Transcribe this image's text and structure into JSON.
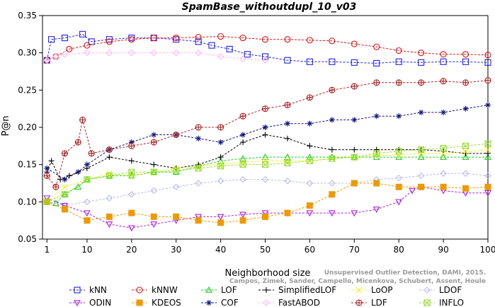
{
  "chart_data": {
    "type": "line",
    "title": "SpamBase_withoutdupl_10_v03",
    "xlabel": "Neighborhood size",
    "ylabel": "P@n",
    "xlim": [
      0,
      100
    ],
    "ylim": [
      0.05,
      0.35
    ],
    "xticks": [
      1,
      10,
      20,
      30,
      40,
      50,
      60,
      70,
      80,
      90,
      100
    ],
    "yticks": [
      0.05,
      0.1,
      0.15,
      0.2,
      0.25,
      0.3,
      0.35
    ],
    "grid": false,
    "legend_position": "bottom",
    "watermark": "Unsupervised Outlier Detection, DAMI, 2015. Campos, Zimek, Sander, Campello, Micenkova, Schubert, Assent, Houle",
    "series": [
      {
        "name": "kNN",
        "color": "#2020ee",
        "marker": "square",
        "dashed": true,
        "points": [
          [
            1,
            0.29
          ],
          [
            2,
            0.318
          ],
          [
            5,
            0.32
          ],
          [
            9,
            0.325
          ],
          [
            11,
            0.315
          ],
          [
            15,
            0.318
          ],
          [
            20,
            0.32
          ],
          [
            25,
            0.32
          ],
          [
            30,
            0.318
          ],
          [
            35,
            0.315
          ],
          [
            38,
            0.31
          ],
          [
            42,
            0.305
          ],
          [
            46,
            0.298
          ],
          [
            50,
            0.295
          ],
          [
            55,
            0.29
          ],
          [
            60,
            0.288
          ],
          [
            65,
            0.288
          ],
          [
            70,
            0.287
          ],
          [
            75,
            0.286
          ],
          [
            80,
            0.288
          ],
          [
            85,
            0.287
          ],
          [
            90,
            0.288
          ],
          [
            95,
            0.288
          ],
          [
            100,
            0.287
          ]
        ]
      },
      {
        "name": "kNNW",
        "color": "#dd1111",
        "marker": "circle",
        "dashed": true,
        "points": [
          [
            1,
            0.29
          ],
          [
            3,
            0.295
          ],
          [
            6,
            0.305
          ],
          [
            10,
            0.31
          ],
          [
            15,
            0.315
          ],
          [
            20,
            0.318
          ],
          [
            25,
            0.32
          ],
          [
            30,
            0.32
          ],
          [
            35,
            0.321
          ],
          [
            40,
            0.322
          ],
          [
            45,
            0.32
          ],
          [
            50,
            0.318
          ],
          [
            55,
            0.318
          ],
          [
            60,
            0.317
          ],
          [
            65,
            0.316
          ],
          [
            70,
            0.312
          ],
          [
            75,
            0.308
          ],
          [
            80,
            0.303
          ],
          [
            85,
            0.3
          ],
          [
            90,
            0.298
          ],
          [
            95,
            0.298
          ],
          [
            100,
            0.297
          ]
        ]
      },
      {
        "name": "LOF",
        "color": "#22cc22",
        "marker": "triangle",
        "dashed": true,
        "points": [
          [
            1,
            0.1
          ],
          [
            3,
            0.098
          ],
          [
            5,
            0.11
          ],
          [
            8,
            0.12
          ],
          [
            10,
            0.13
          ],
          [
            15,
            0.135
          ],
          [
            20,
            0.135
          ],
          [
            25,
            0.14
          ],
          [
            30,
            0.14
          ],
          [
            35,
            0.148
          ],
          [
            40,
            0.155
          ],
          [
            45,
            0.158
          ],
          [
            50,
            0.16
          ],
          [
            55,
            0.16
          ],
          [
            60,
            0.16
          ],
          [
            65,
            0.16
          ],
          [
            70,
            0.16
          ],
          [
            75,
            0.16
          ],
          [
            80,
            0.16
          ],
          [
            85,
            0.16
          ],
          [
            90,
            0.16
          ],
          [
            95,
            0.16
          ],
          [
            100,
            0.16
          ]
        ]
      },
      {
        "name": "SimplifiedLOF",
        "color": "#000000",
        "marker": "plus",
        "dashed": true,
        "points": [
          [
            1,
            0.14
          ],
          [
            2,
            0.155
          ],
          [
            4,
            0.13
          ],
          [
            6,
            0.135
          ],
          [
            10,
            0.145
          ],
          [
            15,
            0.16
          ],
          [
            20,
            0.155
          ],
          [
            25,
            0.15
          ],
          [
            30,
            0.145
          ],
          [
            35,
            0.15
          ],
          [
            40,
            0.16
          ],
          [
            45,
            0.18
          ],
          [
            50,
            0.19
          ],
          [
            55,
            0.185
          ],
          [
            60,
            0.175
          ],
          [
            65,
            0.17
          ],
          [
            70,
            0.17
          ],
          [
            75,
            0.17
          ],
          [
            80,
            0.17
          ],
          [
            85,
            0.17
          ],
          [
            90,
            0.168
          ],
          [
            95,
            0.165
          ],
          [
            100,
            0.165
          ]
        ]
      },
      {
        "name": "LoOP",
        "color": "#eeee22",
        "marker": "x",
        "dashed": true,
        "points": [
          [
            1,
            0.1
          ],
          [
            5,
            0.12
          ],
          [
            10,
            0.13
          ],
          [
            15,
            0.138
          ],
          [
            20,
            0.135
          ],
          [
            25,
            0.14
          ],
          [
            30,
            0.145
          ],
          [
            35,
            0.148
          ],
          [
            40,
            0.15
          ],
          [
            45,
            0.153
          ],
          [
            50,
            0.155
          ],
          [
            55,
            0.155
          ],
          [
            60,
            0.155
          ],
          [
            65,
            0.158
          ],
          [
            70,
            0.16
          ],
          [
            75,
            0.162
          ],
          [
            80,
            0.163
          ],
          [
            85,
            0.165
          ],
          [
            90,
            0.165
          ],
          [
            95,
            0.167
          ],
          [
            100,
            0.17
          ]
        ]
      },
      {
        "name": "LDOF",
        "color": "#bbbbee",
        "marker": "diamond",
        "dashed": true,
        "points": [
          [
            1,
            0.1
          ],
          [
            5,
            0.095
          ],
          [
            10,
            0.1
          ],
          [
            15,
            0.105
          ],
          [
            20,
            0.11
          ],
          [
            25,
            0.115
          ],
          [
            30,
            0.12
          ],
          [
            35,
            0.125
          ],
          [
            40,
            0.128
          ],
          [
            45,
            0.13
          ],
          [
            50,
            0.13
          ],
          [
            55,
            0.128
          ],
          [
            60,
            0.125
          ],
          [
            65,
            0.125
          ],
          [
            70,
            0.125
          ],
          [
            75,
            0.13
          ],
          [
            80,
            0.132
          ],
          [
            85,
            0.135
          ],
          [
            90,
            0.138
          ],
          [
            95,
            0.138
          ],
          [
            100,
            0.135
          ]
        ]
      },
      {
        "name": "ODIN",
        "color": "#aa22dd",
        "marker": "triangle-down",
        "dashed": true,
        "points": [
          [
            1,
            0.105
          ],
          [
            5,
            0.095
          ],
          [
            10,
            0.085
          ],
          [
            15,
            0.07
          ],
          [
            20,
            0.065
          ],
          [
            25,
            0.07
          ],
          [
            30,
            0.075
          ],
          [
            35,
            0.08
          ],
          [
            40,
            0.08
          ],
          [
            45,
            0.083
          ],
          [
            50,
            0.085
          ],
          [
            55,
            0.085
          ],
          [
            60,
            0.085
          ],
          [
            65,
            0.085
          ],
          [
            70,
            0.085
          ],
          [
            75,
            0.09
          ],
          [
            80,
            0.1
          ],
          [
            83,
            0.115
          ],
          [
            85,
            0.12
          ],
          [
            90,
            0.115
          ],
          [
            95,
            0.112
          ],
          [
            100,
            0.112
          ]
        ]
      },
      {
        "name": "KDEOS",
        "color": "#ee9900",
        "marker": "square-filled",
        "dashed": true,
        "points": [
          [
            1,
            0.1
          ],
          [
            5,
            0.09
          ],
          [
            10,
            0.075
          ],
          [
            15,
            0.08
          ],
          [
            20,
            0.085
          ],
          [
            25,
            0.08
          ],
          [
            30,
            0.08
          ],
          [
            35,
            0.075
          ],
          [
            40,
            0.072
          ],
          [
            45,
            0.075
          ],
          [
            50,
            0.08
          ],
          [
            55,
            0.085
          ],
          [
            60,
            0.095
          ],
          [
            65,
            0.11
          ],
          [
            70,
            0.125
          ],
          [
            75,
            0.125
          ],
          [
            80,
            0.12
          ],
          [
            85,
            0.12
          ],
          [
            90,
            0.12
          ],
          [
            95,
            0.118
          ],
          [
            100,
            0.12
          ]
        ]
      },
      {
        "name": "COF",
        "color": "#101080",
        "marker": "asterisk",
        "dashed": true,
        "points": [
          [
            1,
            0.145
          ],
          [
            5,
            0.13
          ],
          [
            8,
            0.14
          ],
          [
            10,
            0.15
          ],
          [
            15,
            0.17
          ],
          [
            20,
            0.18
          ],
          [
            25,
            0.19
          ],
          [
            30,
            0.19
          ],
          [
            35,
            0.185
          ],
          [
            40,
            0.18
          ],
          [
            45,
            0.19
          ],
          [
            50,
            0.2
          ],
          [
            55,
            0.205
          ],
          [
            60,
            0.205
          ],
          [
            65,
            0.21
          ],
          [
            70,
            0.21
          ],
          [
            75,
            0.215
          ],
          [
            80,
            0.215
          ],
          [
            85,
            0.22
          ],
          [
            90,
            0.22
          ],
          [
            95,
            0.225
          ],
          [
            100,
            0.23
          ]
        ]
      },
      {
        "name": "FastABOD",
        "color": "#ffbbee",
        "marker": "diamond",
        "dashed": true,
        "points": [
          [
            1,
            0.29
          ],
          [
            3,
            0.295
          ],
          [
            5,
            0.298
          ],
          [
            10,
            0.3
          ],
          [
            15,
            0.3
          ],
          [
            20,
            0.3
          ],
          [
            25,
            0.3
          ],
          [
            30,
            0.3
          ],
          [
            35,
            0.3
          ],
          [
            40,
            0.295
          ],
          [
            45,
            0.292
          ],
          [
            50,
            0.29
          ]
        ]
      },
      {
        "name": "LDF",
        "color": "#aa2222",
        "marker": "circle-plus",
        "dashed": true,
        "points": [
          [
            1,
            0.135
          ],
          [
            3,
            0.12
          ],
          [
            5,
            0.165
          ],
          [
            8,
            0.18
          ],
          [
            9,
            0.21
          ],
          [
            11,
            0.165
          ],
          [
            15,
            0.17
          ],
          [
            20,
            0.175
          ],
          [
            25,
            0.18
          ],
          [
            30,
            0.19
          ],
          [
            35,
            0.2
          ],
          [
            40,
            0.2
          ],
          [
            45,
            0.215
          ],
          [
            50,
            0.225
          ],
          [
            55,
            0.23
          ],
          [
            60,
            0.24
          ],
          [
            65,
            0.25
          ],
          [
            70,
            0.255
          ],
          [
            75,
            0.26
          ],
          [
            80,
            0.26
          ],
          [
            85,
            0.26
          ],
          [
            90,
            0.262
          ],
          [
            95,
            0.26
          ],
          [
            100,
            0.263
          ]
        ]
      },
      {
        "name": "INFLO",
        "color": "#99dd33",
        "marker": "square-cross",
        "dashed": true,
        "points": [
          [
            1,
            0.1
          ],
          [
            5,
            0.11
          ],
          [
            10,
            0.13
          ],
          [
            15,
            0.135
          ],
          [
            20,
            0.14
          ],
          [
            25,
            0.14
          ],
          [
            30,
            0.142
          ],
          [
            35,
            0.145
          ],
          [
            40,
            0.148
          ],
          [
            45,
            0.15
          ],
          [
            50,
            0.15
          ],
          [
            55,
            0.152
          ],
          [
            60,
            0.155
          ],
          [
            65,
            0.158
          ],
          [
            70,
            0.16
          ],
          [
            75,
            0.165
          ],
          [
            80,
            0.168
          ],
          [
            85,
            0.17
          ],
          [
            90,
            0.172
          ],
          [
            95,
            0.175
          ],
          [
            100,
            0.178
          ]
        ]
      }
    ]
  }
}
